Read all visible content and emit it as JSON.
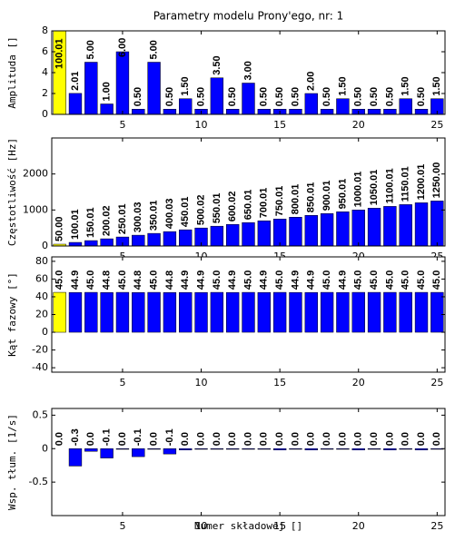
{
  "chart_data": [
    {
      "type": "bar",
      "title": "Parametry modelu Prony'ego, nr: 1",
      "ylabel": "Amplituda []",
      "x": [
        1,
        2,
        3,
        4,
        5,
        6,
        7,
        8,
        9,
        10,
        11,
        12,
        13,
        14,
        15,
        16,
        17,
        18,
        19,
        20,
        21,
        22,
        23,
        24,
        25
      ],
      "values": [
        100.01,
        2.01,
        5,
        1,
        6,
        0.5,
        5,
        0.5,
        1.5,
        0.5,
        3.5,
        0.5,
        3,
        0.5,
        0.5,
        0.5,
        2,
        0.5,
        1.5,
        0.5,
        0.5,
        0.5,
        1.5,
        0.5,
        1.5
      ],
      "value_labels": [
        "100.01",
        "2.01",
        "5.00",
        "1.00",
        "6.00",
        "0.50",
        "5.00",
        "0.50",
        "1.50",
        "0.50",
        "3.50",
        "0.50",
        "3.00",
        "0.50",
        "0.50",
        "0.50",
        "2.00",
        "0.50",
        "1.50",
        "0.50",
        "0.50",
        "0.50",
        "1.50",
        "0.50",
        "1.50"
      ],
      "colors": [
        "#ffff00",
        "#0000ff",
        "#0000ff",
        "#0000ff",
        "#0000ff",
        "#0000ff",
        "#0000ff",
        "#0000ff",
        "#0000ff",
        "#0000ff",
        "#0000ff",
        "#0000ff",
        "#0000ff",
        "#0000ff",
        "#0000ff",
        "#0000ff",
        "#0000ff",
        "#0000ff",
        "#0000ff",
        "#0000ff",
        "#0000ff",
        "#0000ff",
        "#0000ff",
        "#0000ff",
        "#0000ff"
      ],
      "xlim": [
        0.5,
        25.5
      ],
      "xticks": [
        5,
        10,
        15,
        20,
        25
      ],
      "ylim": [
        0,
        8
      ],
      "yticks": [
        0,
        2,
        4,
        6,
        8
      ]
    },
    {
      "type": "bar",
      "ylabel": "Częstotliwość [Hz]",
      "x": [
        1,
        2,
        3,
        4,
        5,
        6,
        7,
        8,
        9,
        10,
        11,
        12,
        13,
        14,
        15,
        16,
        17,
        18,
        19,
        20,
        21,
        22,
        23,
        24,
        25
      ],
      "values": [
        50,
        100.01,
        150.01,
        200.02,
        250.01,
        300.03,
        350.01,
        400.03,
        450.01,
        500.02,
        550.01,
        600.02,
        650.01,
        700.01,
        750.01,
        800.01,
        850.01,
        900.01,
        950.01,
        1000.01,
        1050.01,
        1100.01,
        1150.01,
        1200.01,
        1250
      ],
      "value_labels": [
        "50.00",
        "100.01",
        "150.01",
        "200.02",
        "250.01",
        "300.03",
        "350.01",
        "400.03",
        "450.01",
        "500.02",
        "550.01",
        "600.02",
        "650.01",
        "700.01",
        "750.01",
        "800.01",
        "850.01",
        "900.01",
        "950.01",
        "1000.01",
        "1050.01",
        "1100.01",
        "1150.01",
        "1200.01",
        "1250.00"
      ],
      "colors": [
        "#ffff00",
        "#0000ff",
        "#0000ff",
        "#0000ff",
        "#0000ff",
        "#0000ff",
        "#0000ff",
        "#0000ff",
        "#0000ff",
        "#0000ff",
        "#0000ff",
        "#0000ff",
        "#0000ff",
        "#0000ff",
        "#0000ff",
        "#0000ff",
        "#0000ff",
        "#0000ff",
        "#0000ff",
        "#0000ff",
        "#0000ff",
        "#0000ff",
        "#0000ff",
        "#0000ff",
        "#0000ff"
      ],
      "xlim": [
        0.5,
        25.5
      ],
      "xticks": [
        5,
        10,
        15,
        20,
        25
      ],
      "ylim": [
        0,
        3000
      ],
      "yticks": [
        0,
        1000,
        2000
      ]
    },
    {
      "type": "bar",
      "ylabel": "Kąt fazowy [°]",
      "x": [
        1,
        2,
        3,
        4,
        5,
        6,
        7,
        8,
        9,
        10,
        11,
        12,
        13,
        14,
        15,
        16,
        17,
        18,
        19,
        20,
        21,
        22,
        23,
        24,
        25
      ],
      "values": [
        45,
        44.9,
        45,
        44.8,
        45,
        44.8,
        45,
        44.8,
        44.9,
        44.9,
        45,
        44.9,
        45,
        44.9,
        45,
        44.9,
        44.9,
        45,
        44.9,
        45,
        45,
        45,
        45,
        45,
        45
      ],
      "value_labels": [
        "45.0",
        "44.9",
        "45.0",
        "44.8",
        "45.0",
        "44.8",
        "45.0",
        "44.8",
        "44.9",
        "44.9",
        "45.0",
        "44.9",
        "45.0",
        "44.9",
        "45.0",
        "44.9",
        "44.9",
        "45.0",
        "44.9",
        "45.0",
        "45.0",
        "45.0",
        "45.0",
        "45.0",
        "45.0"
      ],
      "colors": [
        "#ffff00",
        "#0000ff",
        "#0000ff",
        "#0000ff",
        "#0000ff",
        "#0000ff",
        "#0000ff",
        "#0000ff",
        "#0000ff",
        "#0000ff",
        "#0000ff",
        "#0000ff",
        "#0000ff",
        "#0000ff",
        "#0000ff",
        "#0000ff",
        "#0000ff",
        "#0000ff",
        "#0000ff",
        "#0000ff",
        "#0000ff",
        "#0000ff",
        "#0000ff",
        "#0000ff",
        "#0000ff"
      ],
      "xlim": [
        0.5,
        25.5
      ],
      "xticks": [
        5,
        10,
        15,
        20,
        25
      ],
      "ylim": [
        -45,
        85
      ],
      "yticks": [
        -40,
        -20,
        0,
        20,
        40,
        60,
        80
      ]
    },
    {
      "type": "bar",
      "ylabel": "Wsp. tłum. [1/s]",
      "xlabel": "Numer składowej []",
      "x": [
        1,
        2,
        3,
        4,
        5,
        6,
        7,
        8,
        9,
        10,
        11,
        12,
        13,
        14,
        15,
        16,
        17,
        18,
        19,
        20,
        21,
        22,
        23,
        24,
        25
      ],
      "values": [
        0,
        -0.26,
        -0.04,
        -0.14,
        -0.01,
        -0.12,
        -0.01,
        -0.08,
        -0.02,
        -0.01,
        -0.01,
        -0.01,
        -0.01,
        -0.01,
        -0.02,
        -0.01,
        -0.02,
        -0.01,
        -0.01,
        -0.02,
        -0.01,
        -0.02,
        -0.01,
        -0.02,
        -0.01
      ],
      "value_labels": [
        "0.0",
        "-0.3",
        "0.0",
        "-0.1",
        "0.0",
        "-0.1",
        "0.0",
        "-0.1",
        "0.0",
        "0.0",
        "0.0",
        "0.0",
        "0.0",
        "0.0",
        "0.0",
        "0.0",
        "0.0",
        "0.0",
        "0.0",
        "0.0",
        "0.0",
        "0.0",
        "0.0",
        "0.0",
        "0.0"
      ],
      "colors": [
        "#ffff00",
        "#0000ff",
        "#0000ff",
        "#0000ff",
        "#0000ff",
        "#0000ff",
        "#0000ff",
        "#0000ff",
        "#0000ff",
        "#0000ff",
        "#0000ff",
        "#0000ff",
        "#0000ff",
        "#0000ff",
        "#0000ff",
        "#0000ff",
        "#0000ff",
        "#0000ff",
        "#0000ff",
        "#0000ff",
        "#0000ff",
        "#0000ff",
        "#0000ff",
        "#0000ff",
        "#0000ff"
      ],
      "xlim": [
        0.5,
        25.5
      ],
      "xticks": [
        5,
        10,
        15,
        20,
        25
      ],
      "ylim": [
        -1,
        0.6
      ],
      "yticks": [
        -0.5,
        0,
        0.5
      ]
    }
  ]
}
